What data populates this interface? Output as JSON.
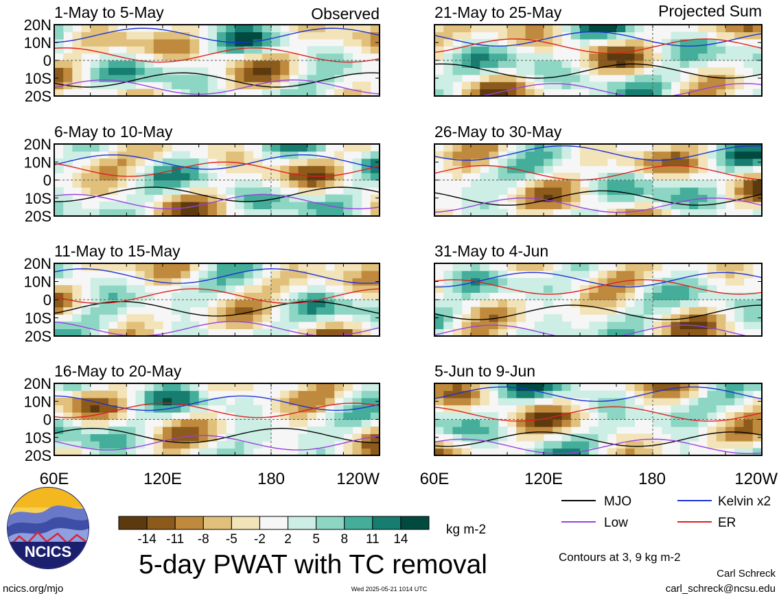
{
  "chart_data": {
    "type": "heatmap",
    "title": "5-day PWAT with TC removal",
    "unit_label": "kg m-2",
    "column_headers": [
      "Observed",
      "Projected Sum"
    ],
    "x_ticks": [
      "60E",
      "120E",
      "180",
      "120W"
    ],
    "x_ticks_right": [
      "60E",
      "120E",
      "180",
      "120W"
    ],
    "y_ticks": [
      "20N",
      "10N",
      "0",
      "10S",
      "20S"
    ],
    "xlim": [
      60,
      240
    ],
    "ylim": [
      -20,
      20
    ],
    "colorbar": {
      "labels": [
        "-14",
        "-11",
        "-8",
        "-5",
        "-2",
        "2",
        "5",
        "8",
        "11",
        "14"
      ],
      "colors": [
        "#5c3a0e",
        "#8c5a1a",
        "#c08a3e",
        "#e0c07a",
        "#f3e3b8",
        "#f6f6f6",
        "#cdeee4",
        "#8dd6c3",
        "#44ae9b",
        "#167d70",
        "#004a40"
      ]
    },
    "panels": [
      {
        "label": "1-May to 5-May",
        "group": "Observed"
      },
      {
        "label": "6-May to 10-May",
        "group": "Observed"
      },
      {
        "label": "11-May to 15-May",
        "group": "Observed"
      },
      {
        "label": "16-May to 20-May",
        "group": "Observed"
      },
      {
        "label": "21-May to 25-May",
        "group": "Projected Sum"
      },
      {
        "label": "26-May to 30-May",
        "group": "Projected Sum"
      },
      {
        "label": "31-May to 4-Jun",
        "group": "Projected Sum"
      },
      {
        "label": "5-Jun to 9-Jun",
        "group": "Projected Sum"
      }
    ],
    "legend": [
      {
        "label": "MJO",
        "color": "#000000"
      },
      {
        "label": "Kelvin x2",
        "color": "#1a2fd6"
      },
      {
        "label": "Low",
        "color": "#9a3ee0"
      },
      {
        "label": "ER",
        "color": "#e01d1d"
      }
    ],
    "contour_note": "Contours at 3, 9 kg m-2"
  },
  "footer": {
    "org_logo_text": "NCICS",
    "left": "ncics.org/mjo",
    "timestamp": "Wed 2025-05-21 1014 UTC",
    "author": "Carl Schreck",
    "email": "carl_schreck@ncsu.edu"
  }
}
